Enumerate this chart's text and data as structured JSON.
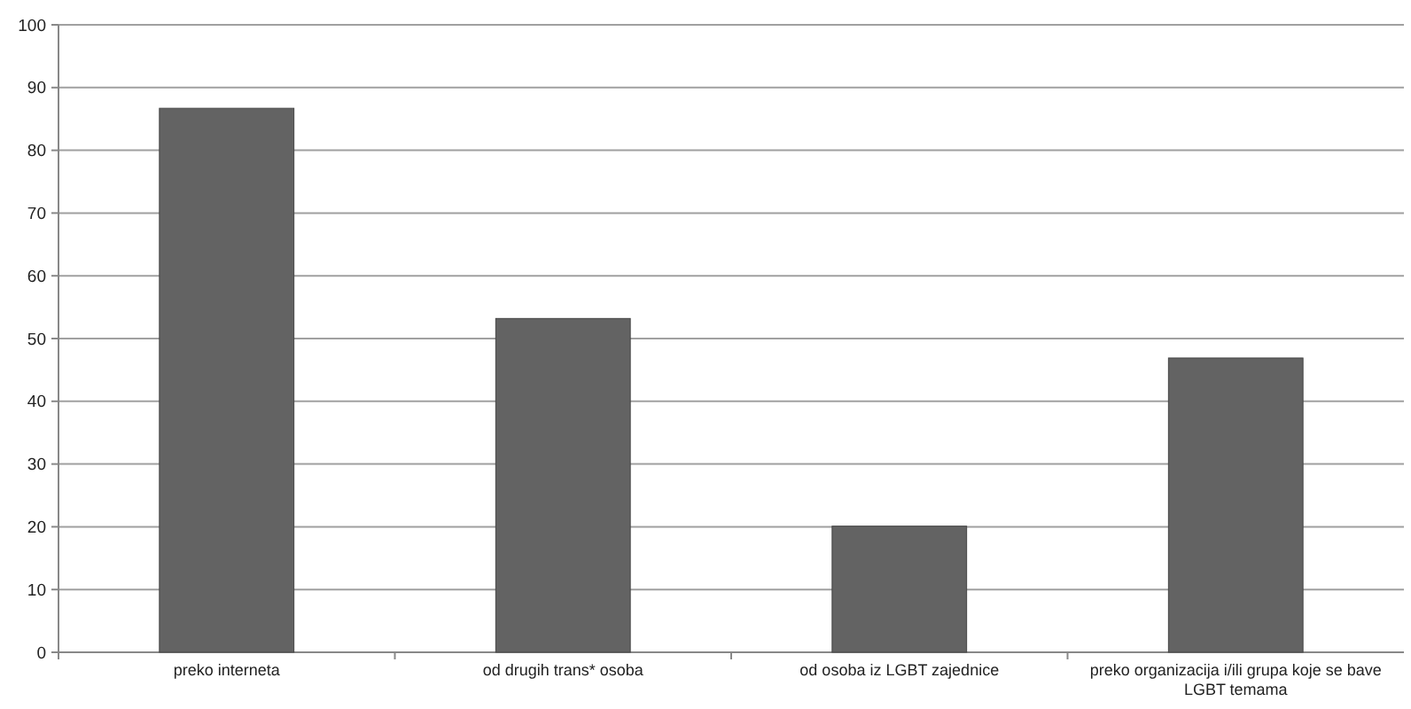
{
  "chart_data": {
    "type": "bar",
    "categories": [
      "preko interneta",
      "od drugih trans* osoba",
      "od osoba iz LGBT zajednice",
      "preko organizacija i/ili grupa koje se bave LGBT temama"
    ],
    "values": [
      86.7,
      53.2,
      20.1,
      46.9
    ],
    "color": "#636363",
    "ylim": [
      0,
      100
    ],
    "yticks": [
      0,
      10,
      20,
      30,
      40,
      50,
      60,
      70,
      80,
      90,
      100
    ],
    "grid": "y"
  }
}
